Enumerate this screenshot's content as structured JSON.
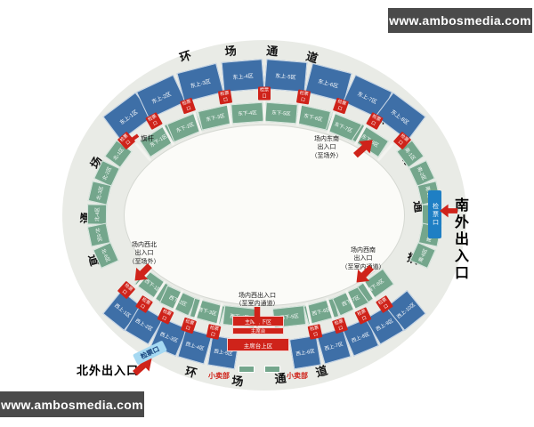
{
  "watermark": {
    "text": "www.ambosmedia.com"
  },
  "arc_labels": [
    "环",
    "场",
    "通",
    "道"
  ],
  "sections": {
    "east_upper": [
      "东上-1区",
      "东上-2区",
      "东上-3区",
      "东上-4区",
      "东上-5区",
      "东上-6区",
      "东上-7区",
      "东上-8区"
    ],
    "east_lower": [
      "东下-1区",
      "东下-2区",
      "东下-3区",
      "东下-4区",
      "东下-5区",
      "东下-6区",
      "东下-7区",
      "东下-8区"
    ],
    "west_upper": [
      "西上-1区",
      "西上-2区",
      "西上-3区",
      "西上-4区",
      "西上-5区",
      "西上-6区",
      "西上-7区",
      "西上-8区",
      "西上-9区",
      "西上-10区"
    ],
    "west_lower": [
      "西下-1区",
      "西下-2区",
      "西下-3区",
      "西下-4区",
      "西下-5区",
      "西下-6区",
      "西下-7区",
      "西下-8区"
    ],
    "north": [
      "北-1区",
      "北-2区",
      "北-3区",
      "北-4区",
      "北-5区",
      "北-6区"
    ],
    "south": [
      "南-1区",
      "南-2区",
      "南-3区",
      "南-4区",
      "南-5区",
      "南-6区"
    ]
  },
  "rostrum": {
    "lower": "主席台下区",
    "stage": "主席台",
    "upper": "主席台上区"
  },
  "gates": {
    "ticket_badge": "检票口",
    "south_outer": "南外出入口",
    "north_outer": "北外出入口"
  },
  "entrances": {
    "southeast": [
      "场内东南",
      "出入口",
      "（至场外）"
    ],
    "northwest": [
      "场内西北",
      "出入口",
      "（至场外）"
    ],
    "west": [
      "场内西出入口",
      "（至室内通道）"
    ],
    "southwest": [
      "场内西南",
      "出入口",
      "（至室内通道）"
    ]
  },
  "facilities": {
    "snack_shop": "小卖部",
    "flagpole": "旗杆"
  },
  "colors": {
    "upper_tier_blue": "#3e6fa7",
    "lower_tier_green": "#74a68c",
    "accent_red": "#cf231a",
    "concourse_gray": "#e9ebe6",
    "gate_badge_blue": "#1f7fc4",
    "gate_badge_light": "#a6d9f2",
    "watermark_bg": "#4a4a4a"
  }
}
